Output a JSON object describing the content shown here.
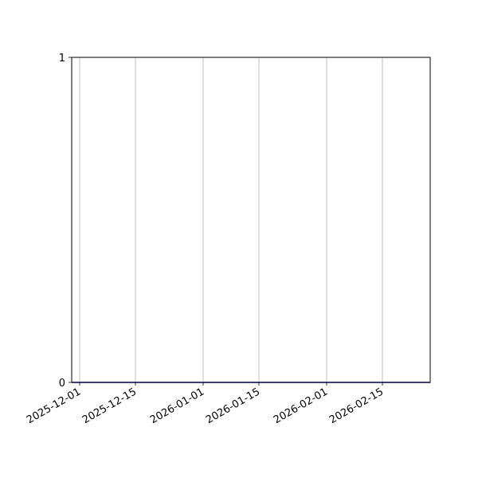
{
  "chart_data": {
    "type": "line",
    "title": "",
    "xlabel": "",
    "ylabel": "",
    "x_axis_type": "date",
    "xlim": [
      "2025-11-29",
      "2026-02-27"
    ],
    "ylim": [
      0,
      1
    ],
    "x_ticks": [
      "2025-12-01",
      "2025-12-15",
      "2026-01-01",
      "2026-01-15",
      "2026-02-01",
      "2026-02-15"
    ],
    "y_ticks": [
      "0",
      "1"
    ],
    "grid": "vertical only",
    "series": [
      {
        "x": [
          "2025-11-29",
          "2026-02-27"
        ],
        "y": [
          0,
          0
        ],
        "color": "#0000cc"
      }
    ]
  }
}
